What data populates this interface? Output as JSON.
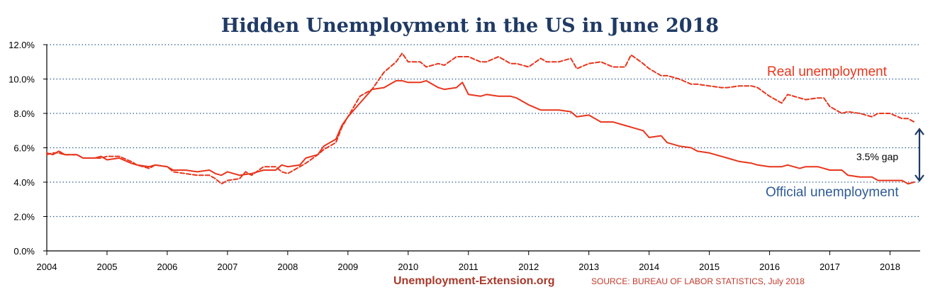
{
  "chart_data": {
    "type": "line",
    "title": "Hidden Unemployment in the US in June 2018",
    "xlabel": "",
    "ylabel": "",
    "xlim": [
      2004,
      2018.5
    ],
    "ylim": [
      0,
      12
    ],
    "grid": "horizontal dotted",
    "x_ticks": [
      "2004",
      "2005",
      "2006",
      "2007",
      "2008",
      "2009",
      "2010",
      "2011",
      "2012",
      "2013",
      "2014",
      "2015",
      "2016",
      "2017",
      "2018"
    ],
    "y_ticks": [
      "0.0%",
      "2.0%",
      "4.0%",
      "6.0%",
      "8.0%",
      "10.0%",
      "12.0%"
    ],
    "series": [
      {
        "name": "Official unemployment",
        "style": "solid",
        "color": "#e8351c",
        "points": [
          [
            2004.0,
            5.7
          ],
          [
            2004.1,
            5.6
          ],
          [
            2004.2,
            5.8
          ],
          [
            2004.3,
            5.6
          ],
          [
            2004.5,
            5.6
          ],
          [
            2004.6,
            5.4
          ],
          [
            2004.8,
            5.4
          ],
          [
            2004.9,
            5.5
          ],
          [
            2005.0,
            5.3
          ],
          [
            2005.2,
            5.4
          ],
          [
            2005.4,
            5.1
          ],
          [
            2005.5,
            5.0
          ],
          [
            2005.7,
            4.9
          ],
          [
            2005.8,
            5.0
          ],
          [
            2006.0,
            4.9
          ],
          [
            2006.1,
            4.7
          ],
          [
            2006.3,
            4.7
          ],
          [
            2006.5,
            4.6
          ],
          [
            2006.7,
            4.7
          ],
          [
            2006.8,
            4.5
          ],
          [
            2006.9,
            4.4
          ],
          [
            2007.0,
            4.6
          ],
          [
            2007.2,
            4.4
          ],
          [
            2007.4,
            4.5
          ],
          [
            2007.6,
            4.7
          ],
          [
            2007.8,
            4.7
          ],
          [
            2007.9,
            5.0
          ],
          [
            2008.0,
            4.9
          ],
          [
            2008.2,
            5.0
          ],
          [
            2008.3,
            5.4
          ],
          [
            2008.5,
            5.6
          ],
          [
            2008.6,
            6.1
          ],
          [
            2008.8,
            6.5
          ],
          [
            2008.9,
            7.3
          ],
          [
            2009.0,
            7.8
          ],
          [
            2009.2,
            8.6
          ],
          [
            2009.4,
            9.4
          ],
          [
            2009.6,
            9.5
          ],
          [
            2009.8,
            9.9
          ],
          [
            2009.9,
            9.9
          ],
          [
            2010.0,
            9.8
          ],
          [
            2010.2,
            9.8
          ],
          [
            2010.3,
            9.9
          ],
          [
            2010.5,
            9.5
          ],
          [
            2010.6,
            9.4
          ],
          [
            2010.8,
            9.5
          ],
          [
            2010.9,
            9.8
          ],
          [
            2011.0,
            9.1
          ],
          [
            2011.2,
            9.0
          ],
          [
            2011.3,
            9.1
          ],
          [
            2011.5,
            9.0
          ],
          [
            2011.7,
            9.0
          ],
          [
            2011.8,
            8.9
          ],
          [
            2012.0,
            8.5
          ],
          [
            2012.2,
            8.2
          ],
          [
            2012.3,
            8.2
          ],
          [
            2012.5,
            8.2
          ],
          [
            2012.7,
            8.1
          ],
          [
            2012.8,
            7.8
          ],
          [
            2013.0,
            7.9
          ],
          [
            2013.2,
            7.5
          ],
          [
            2013.4,
            7.5
          ],
          [
            2013.6,
            7.3
          ],
          [
            2013.7,
            7.2
          ],
          [
            2013.9,
            7.0
          ],
          [
            2014.0,
            6.6
          ],
          [
            2014.2,
            6.7
          ],
          [
            2014.3,
            6.3
          ],
          [
            2014.5,
            6.1
          ],
          [
            2014.7,
            6.0
          ],
          [
            2014.8,
            5.8
          ],
          [
            2015.0,
            5.7
          ],
          [
            2015.2,
            5.5
          ],
          [
            2015.3,
            5.4
          ],
          [
            2015.5,
            5.2
          ],
          [
            2015.7,
            5.1
          ],
          [
            2015.8,
            5.0
          ],
          [
            2016.0,
            4.9
          ],
          [
            2016.2,
            4.9
          ],
          [
            2016.3,
            5.0
          ],
          [
            2016.5,
            4.8
          ],
          [
            2016.6,
            4.9
          ],
          [
            2016.8,
            4.9
          ],
          [
            2016.9,
            4.8
          ],
          [
            2017.0,
            4.7
          ],
          [
            2017.2,
            4.7
          ],
          [
            2017.3,
            4.4
          ],
          [
            2017.5,
            4.3
          ],
          [
            2017.7,
            4.3
          ],
          [
            2017.8,
            4.1
          ],
          [
            2018.0,
            4.1
          ],
          [
            2018.2,
            4.1
          ],
          [
            2018.3,
            3.9
          ],
          [
            2018.4,
            4.0
          ]
        ]
      },
      {
        "name": "Real unemployment",
        "style": "dashed",
        "color": "#e8351c",
        "points": [
          [
            2004.0,
            5.6
          ],
          [
            2004.1,
            5.7
          ],
          [
            2004.2,
            5.7
          ],
          [
            2004.3,
            5.6
          ],
          [
            2004.5,
            5.6
          ],
          [
            2004.6,
            5.4
          ],
          [
            2004.8,
            5.4
          ],
          [
            2004.9,
            5.4
          ],
          [
            2005.0,
            5.5
          ],
          [
            2005.2,
            5.5
          ],
          [
            2005.4,
            5.2
          ],
          [
            2005.5,
            5.0
          ],
          [
            2005.7,
            4.8
          ],
          [
            2005.8,
            5.0
          ],
          [
            2006.0,
            4.9
          ],
          [
            2006.1,
            4.6
          ],
          [
            2006.3,
            4.5
          ],
          [
            2006.5,
            4.4
          ],
          [
            2006.7,
            4.4
          ],
          [
            2006.8,
            4.2
          ],
          [
            2006.9,
            3.9
          ],
          [
            2007.0,
            4.1
          ],
          [
            2007.2,
            4.2
          ],
          [
            2007.3,
            4.6
          ],
          [
            2007.4,
            4.4
          ],
          [
            2007.6,
            4.9
          ],
          [
            2007.8,
            4.9
          ],
          [
            2007.9,
            4.6
          ],
          [
            2008.0,
            4.5
          ],
          [
            2008.2,
            4.9
          ],
          [
            2008.3,
            5.1
          ],
          [
            2008.5,
            5.6
          ],
          [
            2008.6,
            5.9
          ],
          [
            2008.8,
            6.3
          ],
          [
            2008.9,
            7.2
          ],
          [
            2009.0,
            7.8
          ],
          [
            2009.2,
            9.0
          ],
          [
            2009.4,
            9.4
          ],
          [
            2009.6,
            10.4
          ],
          [
            2009.8,
            11.0
          ],
          [
            2009.9,
            11.5
          ],
          [
            2010.0,
            11.0
          ],
          [
            2010.2,
            11.0
          ],
          [
            2010.3,
            10.7
          ],
          [
            2010.5,
            10.9
          ],
          [
            2010.6,
            10.8
          ],
          [
            2010.8,
            11.3
          ],
          [
            2011.0,
            11.3
          ],
          [
            2011.2,
            11.0
          ],
          [
            2011.3,
            11.0
          ],
          [
            2011.5,
            11.3
          ],
          [
            2011.7,
            10.9
          ],
          [
            2011.8,
            10.9
          ],
          [
            2012.0,
            10.7
          ],
          [
            2012.2,
            11.2
          ],
          [
            2012.3,
            11.0
          ],
          [
            2012.5,
            11.0
          ],
          [
            2012.7,
            11.2
          ],
          [
            2012.8,
            10.6
          ],
          [
            2013.0,
            10.9
          ],
          [
            2013.2,
            11.0
          ],
          [
            2013.4,
            10.7
          ],
          [
            2013.6,
            10.7
          ],
          [
            2013.7,
            11.4
          ],
          [
            2013.9,
            10.9
          ],
          [
            2014.0,
            10.6
          ],
          [
            2014.2,
            10.2
          ],
          [
            2014.3,
            10.2
          ],
          [
            2014.5,
            10.0
          ],
          [
            2014.7,
            9.7
          ],
          [
            2014.8,
            9.7
          ],
          [
            2015.0,
            9.6
          ],
          [
            2015.2,
            9.5
          ],
          [
            2015.3,
            9.5
          ],
          [
            2015.5,
            9.6
          ],
          [
            2015.7,
            9.6
          ],
          [
            2015.8,
            9.5
          ],
          [
            2016.0,
            9.0
          ],
          [
            2016.2,
            8.6
          ],
          [
            2016.3,
            9.1
          ],
          [
            2016.5,
            8.9
          ],
          [
            2016.6,
            8.8
          ],
          [
            2016.8,
            8.9
          ],
          [
            2016.9,
            8.9
          ],
          [
            2017.0,
            8.4
          ],
          [
            2017.2,
            8.0
          ],
          [
            2017.3,
            8.1
          ],
          [
            2017.5,
            8.0
          ],
          [
            2017.7,
            7.8
          ],
          [
            2017.8,
            8.0
          ],
          [
            2018.0,
            8.0
          ],
          [
            2018.2,
            7.7
          ],
          [
            2018.3,
            7.7
          ],
          [
            2018.4,
            7.5
          ]
        ]
      }
    ],
    "annotations": {
      "real_label": "Real unemployment",
      "official_label": "Official unemployment",
      "gap_label": "3.5% gap"
    }
  },
  "colors": {
    "title": "#1f3a64",
    "line": "#e8351c",
    "real_label": "#e8351c",
    "official_label": "#2f5b96",
    "gap_arrow": "#1f3a64",
    "grid": "#2f5b96",
    "footer_left": "#a8392b",
    "footer_right": "#c0392b"
  },
  "footer": {
    "site": "Unemployment-Extension.org",
    "source": "SOURCE: BUREAU OF LABOR STATISTICS, July 2018"
  }
}
